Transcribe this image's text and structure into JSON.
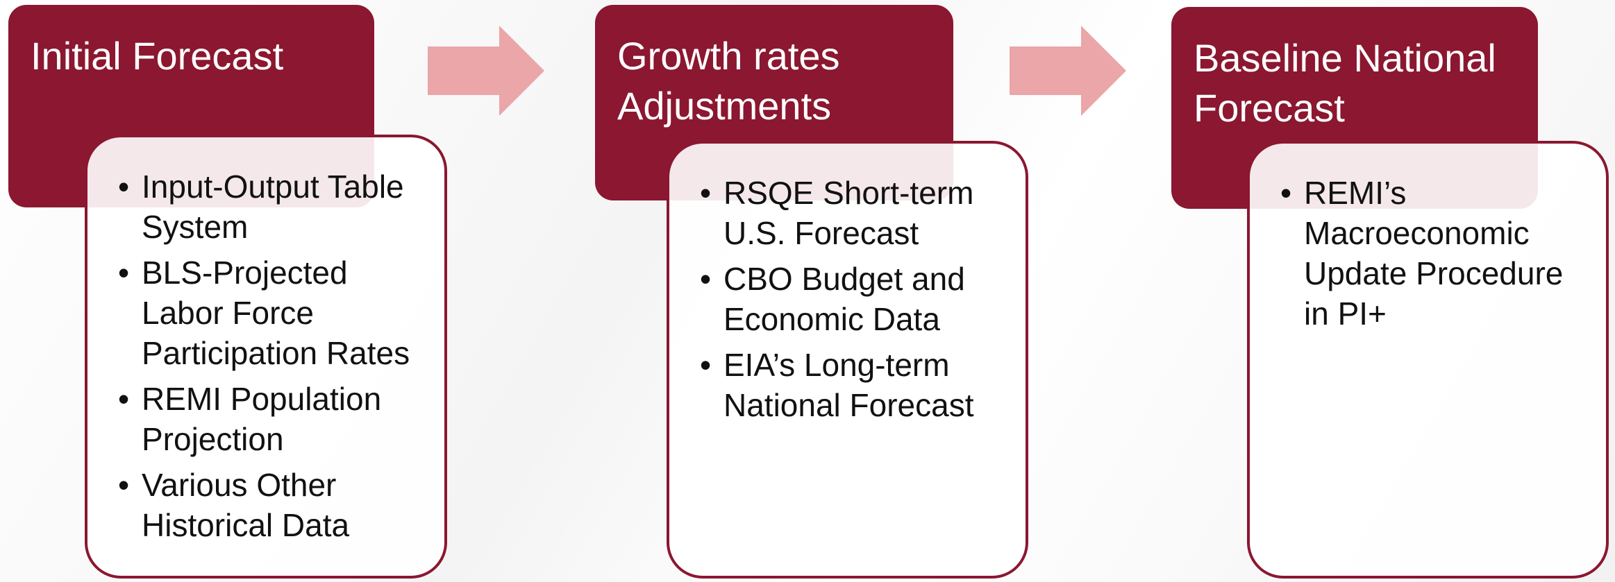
{
  "steps": [
    {
      "title": "Initial Forecast",
      "items": [
        "Input-Output Table System",
        "BLS-Projected Labor Force Participation Rates",
        "REMI Population Projection",
        "Various Other Historical Data"
      ]
    },
    {
      "title": "Growth rates Adjustments",
      "items": [
        "RSQE Short-term U.S. Forecast",
        "CBO Budget and Economic Data",
        "EIA’s Long-term National Forecast"
      ]
    },
    {
      "title": "Baseline National Forecast",
      "items": [
        "REMI’s Macroeconomic Update Procedure in PI+"
      ]
    }
  ]
}
